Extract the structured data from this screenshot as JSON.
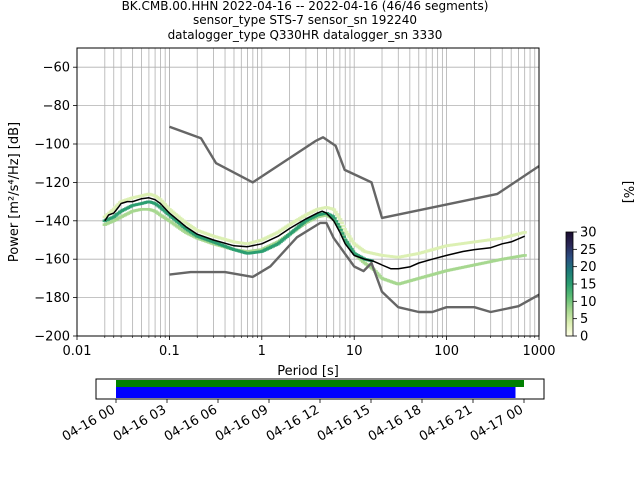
{
  "title_lines": [
    "BK.CMB.00.HHN   2022-04-16 -- 2022-04-16  (46/46 segments)",
    "sensor_type STS-7 sensor_sn 192240",
    "datalogger_type Q330HR datalogger_sn 3330"
  ],
  "colors": {
    "mean_line": "#000000",
    "noise_models": "#666666",
    "grid": "#b0b0b0",
    "coverage_data": "#008000",
    "coverage_gaps": "#0000ff",
    "colormap": [
      "#ffffe5",
      "#dcefb3",
      "#a6d78f",
      "#5dbd74",
      "#2a9d70",
      "#1d7a78",
      "#2b4f82",
      "#2a2756",
      "#1a0c2e"
    ]
  },
  "chart_data": {
    "type": "heatmap",
    "xlabel": "Period [s]",
    "ylabel": "Power [m²/s⁴/Hz] [dB]",
    "xscale": "log",
    "xlim": [
      0.01,
      1000
    ],
    "ylim": [
      -200,
      -50
    ],
    "grid": true,
    "xticks": [
      {
        "value": 0.01,
        "label": "0.01"
      },
      {
        "value": 0.1,
        "label": "0.1"
      },
      {
        "value": 1,
        "label": "1"
      },
      {
        "value": 10,
        "label": "10"
      },
      {
        "value": 100,
        "label": "100"
      },
      {
        "value": 1000,
        "label": "1000"
      }
    ],
    "yticks": [
      {
        "value": -60,
        "label": "−60"
      },
      {
        "value": -80,
        "label": "−80"
      },
      {
        "value": -100,
        "label": "−100"
      },
      {
        "value": -120,
        "label": "−120"
      },
      {
        "value": -140,
        "label": "−140"
      },
      {
        "value": -160,
        "label": "−160"
      },
      {
        "value": -180,
        "label": "−180"
      },
      {
        "value": -200,
        "label": "−200"
      }
    ],
    "period_grid_lines": [
      0.02,
      0.025,
      0.03,
      0.04,
      0.05,
      0.06,
      0.07,
      0.08,
      0.09,
      0.1,
      0.2,
      0.3,
      0.4,
      0.5,
      0.6,
      0.7,
      0.8,
      0.9,
      2,
      3,
      4,
      5,
      6,
      7,
      8,
      9,
      20,
      30,
      40,
      50,
      60,
      70,
      80,
      90,
      200,
      300,
      400,
      500,
      600,
      700,
      800,
      900
    ],
    "colorbar": {
      "label": "[%]",
      "min": 0,
      "max": 30,
      "ticks": [
        0,
        5,
        10,
        15,
        20,
        25,
        30
      ]
    },
    "mean_series": {
      "x": [
        0.02,
        0.022,
        0.025,
        0.028,
        0.03,
        0.035,
        0.04,
        0.05,
        0.06,
        0.07,
        0.08,
        0.1,
        0.15,
        0.2,
        0.3,
        0.5,
        0.7,
        1.0,
        1.5,
        2.0,
        3.0,
        4.0,
        4.5,
        5.0,
        6.0,
        7.0,
        8.0,
        10,
        13,
        16,
        20,
        25,
        30,
        40,
        50,
        70,
        100,
        150,
        200,
        300,
        400,
        500,
        700
      ],
      "y": [
        -140,
        -137,
        -136,
        -133,
        -131,
        -130,
        -130,
        -128.5,
        -128,
        -129,
        -131,
        -136,
        -143,
        -147,
        -150,
        -153,
        -153.5,
        -152,
        -148,
        -144,
        -139,
        -136,
        -135,
        -136,
        -140,
        -146,
        -152,
        -158,
        -160,
        -161,
        -163,
        -165,
        -165,
        -164,
        -162,
        -160,
        -158,
        -156,
        -155,
        -154,
        -152,
        -151,
        -148
      ]
    },
    "noise_model_upper": {
      "x": [
        0.1,
        0.22,
        0.32,
        0.8,
        3.8,
        4.6,
        6.3,
        7.9,
        15.4,
        20,
        354.8,
        1000
      ],
      "y": [
        -91,
        -97,
        -110,
        -120,
        -98.5,
        -96.5,
        -101,
        -113.5,
        -120,
        -138.5,
        -126,
        -111.5
      ]
    },
    "noise_model_lower": {
      "x": [
        0.1,
        0.17,
        0.4,
        0.8,
        1.24,
        2.4,
        4.3,
        5.0,
        6.0,
        10,
        12.6,
        15.4,
        20,
        30,
        50,
        70,
        100,
        200,
        300,
        600,
        1000
      ],
      "y": [
        -168,
        -166.7,
        -166.7,
        -169.2,
        -163.7,
        -148.6,
        -141.1,
        -141.1,
        -149,
        -163.8,
        -166.2,
        -162,
        -177,
        -185,
        -187.5,
        -187.5,
        -185,
        -185,
        -187.5,
        -184.5,
        -178.5
      ]
    },
    "psd_density_bands": [
      {
        "x": [
          0.02,
          0.025,
          0.03,
          0.04,
          0.05,
          0.06,
          0.07,
          0.08,
          0.1,
          0.15,
          0.2,
          0.3,
          0.5,
          0.7,
          1,
          1.5,
          2,
          3,
          4,
          5,
          6,
          7,
          8,
          10,
          13,
          16,
          20,
          30,
          50,
          100,
          200,
          400,
          700
        ],
        "y": [
          -138,
          -134,
          -130,
          -128,
          -127,
          -126,
          -127,
          -129,
          -134,
          -141,
          -145,
          -148,
          -151,
          -152,
          -150,
          -146,
          -142,
          -137,
          -134,
          -133,
          -134,
          -139,
          -145,
          -152,
          -156,
          -157,
          -158,
          -159,
          -157,
          -153,
          -151,
          -149,
          -146
        ],
        "percent": 3
      },
      {
        "x": [
          0.02,
          0.025,
          0.03,
          0.04,
          0.05,
          0.06,
          0.07,
          0.08,
          0.1,
          0.15,
          0.2,
          0.3,
          0.5,
          0.7,
          1,
          1.5,
          2,
          3,
          4,
          5,
          6,
          7,
          8,
          10,
          13,
          16,
          20,
          30,
          50,
          100,
          200,
          400,
          700
        ],
        "y": [
          -142,
          -140,
          -138,
          -135,
          -134,
          -134,
          -135,
          -137,
          -140,
          -146,
          -149,
          -152,
          -155,
          -156,
          -155,
          -151,
          -147,
          -141,
          -138,
          -137,
          -139,
          -144,
          -150,
          -157,
          -162,
          -165,
          -170,
          -173,
          -170,
          -166,
          -163,
          -160,
          -158
        ],
        "percent": 6
      },
      {
        "x": [
          0.02,
          0.025,
          0.03,
          0.04,
          0.05,
          0.06,
          0.07,
          0.08,
          0.1,
          0.15,
          0.2,
          0.3,
          0.5,
          0.7,
          1,
          1.5,
          2,
          3,
          4,
          5,
          6,
          7,
          8,
          10,
          13,
          16
        ],
        "y": [
          -140,
          -138,
          -135,
          -132,
          -131,
          -130,
          -131,
          -133,
          -137,
          -144,
          -148,
          -151,
          -155,
          -157,
          -156,
          -152,
          -147,
          -140,
          -137,
          -136,
          -138,
          -144,
          -150,
          -157,
          -160,
          -161
        ],
        "percent": 14
      }
    ]
  },
  "coverage": {
    "xticks": [
      "04-16 00",
      "04-16 03",
      "04-16 06",
      "04-16 09",
      "04-16 12",
      "04-16 15",
      "04-16 18",
      "04-16 21",
      "04-17 00"
    ],
    "data_span_hours": [
      0,
      24
    ],
    "gap_span_hours": [
      0,
      23.5
    ]
  }
}
